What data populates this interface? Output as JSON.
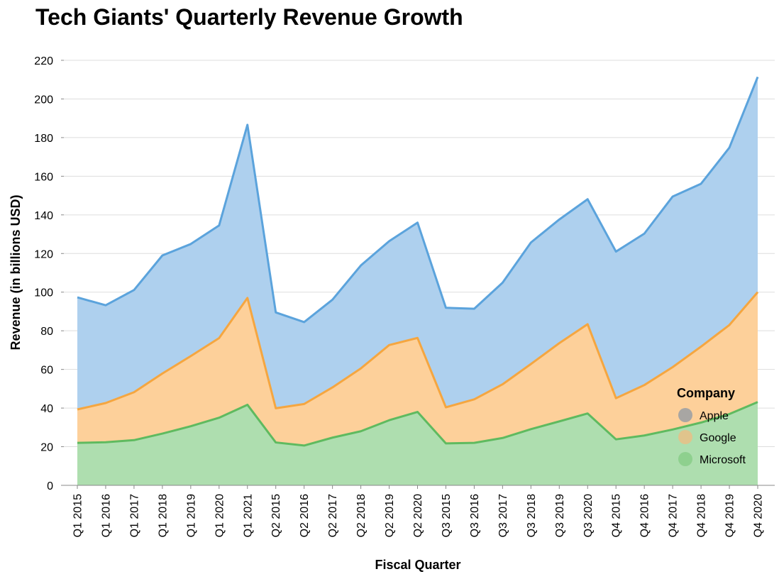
{
  "chart_data": {
    "type": "area",
    "stacked": true,
    "title": "Tech Giants' Quarterly Revenue Growth",
    "xlabel": "Fiscal Quarter",
    "ylabel": "Revenue (in billions USD)",
    "ylim": [
      0,
      220
    ],
    "yticks": [
      0,
      20,
      40,
      60,
      80,
      100,
      120,
      140,
      160,
      180,
      200,
      220
    ],
    "grid": true,
    "legend": {
      "title": "Company",
      "position": "bottom-right"
    },
    "categories": [
      "Q1 2015",
      "Q1 2016",
      "Q1 2017",
      "Q1 2018",
      "Q1 2019",
      "Q1 2020",
      "Q1 2021",
      "Q2 2015",
      "Q2 2016",
      "Q2 2017",
      "Q2 2018",
      "Q2 2019",
      "Q2 2020",
      "Q3 2015",
      "Q3 2016",
      "Q3 2017",
      "Q3 2018",
      "Q3 2019",
      "Q3 2020",
      "Q4 2015",
      "Q4 2016",
      "Q4 2017",
      "Q4 2018",
      "Q4 2019",
      "Q4 2020"
    ],
    "series": [
      {
        "name": "Microsoft",
        "fill": "#aedeaf",
        "stroke": "#5fba5f",
        "legend_color": "#8ccf8c",
        "values": [
          22.0,
          22.3,
          23.4,
          26.8,
          30.6,
          35.0,
          41.7,
          22.2,
          20.6,
          24.7,
          28.0,
          33.7,
          38.0,
          21.7,
          22.0,
          24.5,
          29.1,
          33.1,
          37.2,
          23.8,
          25.8,
          28.9,
          32.5,
          36.9,
          43.1
        ]
      },
      {
        "name": "Google",
        "fill": "#fdd09a",
        "stroke": "#f5a640",
        "legend_color": "#e3c28a",
        "values": [
          17.3,
          20.3,
          24.8,
          31.1,
          36.3,
          41.2,
          55.3,
          17.7,
          21.5,
          26.0,
          32.5,
          38.9,
          38.3,
          18.7,
          22.5,
          27.8,
          33.7,
          40.5,
          46.2,
          21.3,
          26.1,
          32.3,
          39.3,
          46.1,
          56.9
        ]
      },
      {
        "name": "Apple",
        "fill": "#aed0ee",
        "stroke": "#5ba3dc",
        "legend_color": "#a3a3a3",
        "values": [
          58.0,
          50.6,
          52.9,
          61.1,
          58.0,
          58.3,
          89.6,
          49.6,
          42.4,
          45.4,
          53.3,
          53.8,
          59.7,
          51.5,
          46.9,
          52.6,
          62.9,
          64.0,
          64.7,
          75.9,
          78.4,
          88.3,
          84.3,
          91.8,
          111.4
        ]
      }
    ]
  }
}
